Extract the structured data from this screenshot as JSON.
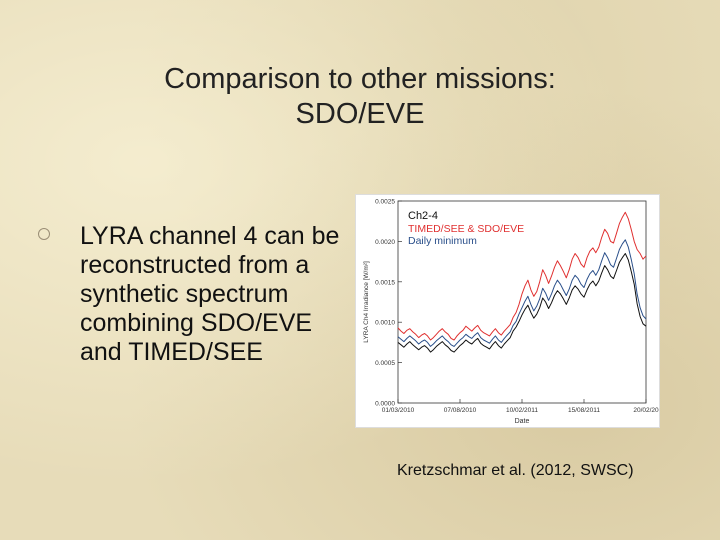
{
  "slide": {
    "title_line1": "Comparison to other missions:",
    "title_line2": "SDO/EVE",
    "bullet": "LYRA channel 4 can be reconstructed from a synthetic spectrum combining SDO/EVE and TIMED/SEE",
    "caption": "Kretzschmar et al. (2012, SWSC)"
  },
  "chart_data": {
    "type": "line",
    "annotation_title": "Ch2-4",
    "xlabel": "Date",
    "ylabel": "LYRA Ch4 Irradiance [W/m²]",
    "x_ticks": [
      "01/03/2010",
      "07/08/2010",
      "10/02/2011",
      "15/08/2011",
      "20/02/20"
    ],
    "y_ticks": [
      "0.0000",
      "0.0005",
      "0.0010",
      "0.0015",
      "0.0020",
      "0.0025"
    ],
    "ylim": [
      0,
      0.0025
    ],
    "colors": {
      "timed_see_sdo_eve": "#e03030",
      "daily_minimum": "#2a4f8a",
      "base": "#111111"
    },
    "series": [
      {
        "name": "TIMED/SEE & SDO/EVE",
        "color": "#e03030",
        "values": [
          0.00093,
          0.00089,
          0.00086,
          0.0009,
          0.00092,
          0.00088,
          0.00085,
          0.00081,
          0.00084,
          0.00086,
          0.00083,
          0.00078,
          0.00081,
          0.00085,
          0.00089,
          0.00092,
          0.00088,
          0.00085,
          0.0008,
          0.00078,
          0.00083,
          0.00087,
          0.0009,
          0.00095,
          0.00092,
          0.00089,
          0.00093,
          0.00096,
          0.0009,
          0.00087,
          0.00085,
          0.00083,
          0.00088,
          0.00092,
          0.00087,
          0.00084,
          0.00089,
          0.00093,
          0.00097,
          0.00106,
          0.00112,
          0.00122,
          0.00135,
          0.00145,
          0.00152,
          0.0014,
          0.00132,
          0.00138,
          0.0015,
          0.00165,
          0.00158,
          0.00148,
          0.00157,
          0.00168,
          0.00176,
          0.0017,
          0.00163,
          0.00155,
          0.00165,
          0.00178,
          0.00185,
          0.0018,
          0.00172,
          0.00168,
          0.0018,
          0.00188,
          0.00192,
          0.00186,
          0.00193,
          0.00205,
          0.00215,
          0.0021,
          0.002,
          0.00198,
          0.0021,
          0.00222,
          0.0023,
          0.00236,
          0.00228,
          0.00215,
          0.002,
          0.0019,
          0.00185,
          0.00178,
          0.00182
        ]
      },
      {
        "name": "Daily minimum",
        "color": "#2a4f8a",
        "values": [
          0.00082,
          0.00079,
          0.00076,
          0.0008,
          0.00083,
          0.0008,
          0.00077,
          0.00073,
          0.00076,
          0.00078,
          0.00075,
          0.0007,
          0.00073,
          0.00077,
          0.0008,
          0.00083,
          0.00079,
          0.00076,
          0.00072,
          0.0007,
          0.00074,
          0.00078,
          0.00081,
          0.00085,
          0.00082,
          0.0008,
          0.00084,
          0.00087,
          0.00081,
          0.00078,
          0.00076,
          0.00074,
          0.00079,
          0.00083,
          0.00078,
          0.00075,
          0.0008,
          0.00084,
          0.00088,
          0.00096,
          0.00101,
          0.0011,
          0.00118,
          0.00126,
          0.00132,
          0.00122,
          0.00114,
          0.0012,
          0.00129,
          0.00142,
          0.00136,
          0.00127,
          0.00135,
          0.00145,
          0.00152,
          0.00147,
          0.0014,
          0.00133,
          0.00141,
          0.00152,
          0.00158,
          0.00154,
          0.00147,
          0.00143,
          0.00153,
          0.0016,
          0.00164,
          0.00158,
          0.00165,
          0.00176,
          0.00186,
          0.0018,
          0.00171,
          0.00168,
          0.00179,
          0.0019,
          0.00197,
          0.00202,
          0.00193,
          0.00178,
          0.0016,
          0.00135,
          0.00118,
          0.00108,
          0.00104
        ]
      },
      {
        "name": "",
        "color": "#111111",
        "values": [
          0.00075,
          0.00072,
          0.00069,
          0.00073,
          0.00076,
          0.00072,
          0.00069,
          0.00066,
          0.00069,
          0.00071,
          0.00068,
          0.00063,
          0.00066,
          0.0007,
          0.00073,
          0.00076,
          0.00072,
          0.00069,
          0.00065,
          0.00063,
          0.00067,
          0.00071,
          0.00074,
          0.00078,
          0.00075,
          0.00073,
          0.00077,
          0.0008,
          0.00074,
          0.00071,
          0.00069,
          0.00067,
          0.00072,
          0.00076,
          0.00071,
          0.00068,
          0.00073,
          0.00077,
          0.00081,
          0.00089,
          0.00094,
          0.00101,
          0.00109,
          0.00116,
          0.00121,
          0.00112,
          0.00105,
          0.0011,
          0.00118,
          0.0013,
          0.00125,
          0.00117,
          0.00124,
          0.00133,
          0.00139,
          0.00135,
          0.00129,
          0.00122,
          0.0013,
          0.0014,
          0.00145,
          0.00141,
          0.00135,
          0.00131,
          0.0014,
          0.00147,
          0.00151,
          0.00145,
          0.00151,
          0.00161,
          0.0017,
          0.00165,
          0.00157,
          0.00154,
          0.00164,
          0.00174,
          0.0018,
          0.00185,
          0.00177,
          0.00163,
          0.00147,
          0.00123,
          0.00107,
          0.00098,
          0.00095
        ]
      }
    ]
  }
}
